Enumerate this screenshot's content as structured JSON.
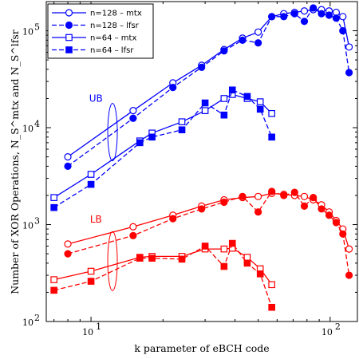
{
  "chart_data": {
    "type": "line",
    "xscale": "log",
    "yscale": "log",
    "xlim": [
      6.5,
      130
    ],
    "ylim": [
      100,
      200000
    ],
    "xlabel": "k parameter of eBCH code",
    "ylabel": "Number of XOR Operations, N_S^mtx and N_S^lfsr",
    "xticks": [
      10,
      100
    ],
    "yticks": [
      100,
      1000,
      10000,
      100000
    ],
    "grid": false,
    "legend_position": "top-left",
    "colors": {
      "blue": "#0000ff",
      "red": "#ff0000"
    },
    "annotations": [
      {
        "text": "UB",
        "color": "#0000ff"
      },
      {
        "text": "LB",
        "color": "#ff0000"
      }
    ],
    "series": [
      {
        "name": "n=128 – mtx",
        "group": "UB",
        "color": "#0000ff",
        "dash": false,
        "marker": "circle-open",
        "x": [
          8,
          15,
          22,
          29,
          36,
          43,
          50,
          57,
          64,
          71,
          78,
          85,
          92,
          99,
          106,
          113,
          120
        ],
        "y": [
          5000,
          15000,
          29000,
          44000,
          64000,
          84000,
          97000,
          140000,
          150000,
          155000,
          160000,
          165000,
          165000,
          160000,
          155000,
          140000,
          68000
        ]
      },
      {
        "name": "n=128 – lfsr",
        "group": "UB",
        "color": "#0000ff",
        "dash": true,
        "marker": "circle-filled",
        "x": [
          8,
          15,
          22,
          29,
          36,
          43,
          50,
          57,
          64,
          71,
          78,
          85,
          92,
          99,
          106,
          113,
          120
        ],
        "y": [
          4000,
          12500,
          26000,
          42000,
          62000,
          80000,
          75000,
          140000,
          140000,
          150000,
          125000,
          172000,
          150000,
          145000,
          135000,
          100000,
          37000
        ]
      },
      {
        "name": "n=64 – mtx",
        "group": "UB",
        "color": "#0000ff",
        "dash": false,
        "marker": "square-open",
        "x": [
          7,
          10,
          16,
          18,
          24,
          30,
          36,
          39,
          45,
          51,
          57
        ],
        "y": [
          1900,
          3300,
          7300,
          8800,
          11500,
          15000,
          20000,
          22000,
          20000,
          18500,
          14000
        ]
      },
      {
        "name": "n=64 – lfsr",
        "group": "UB",
        "color": "#0000ff",
        "dash": true,
        "marker": "square-filled",
        "x": [
          7,
          10,
          16,
          18,
          24,
          30,
          36,
          39,
          45,
          51,
          57
        ],
        "y": [
          1500,
          2600,
          7000,
          8000,
          9500,
          18000,
          13500,
          24500,
          21000,
          15500,
          8000
        ]
      },
      {
        "name": "n=128 – mtx",
        "group": "LB",
        "color": "#ff0000",
        "dash": false,
        "marker": "circle-open",
        "in_legend": false,
        "x": [
          8,
          15,
          22,
          29,
          36,
          43,
          50,
          57,
          64,
          71,
          78,
          85,
          92,
          99,
          106,
          113,
          120
        ],
        "y": [
          630,
          950,
          1250,
          1550,
          1800,
          1900,
          1950,
          2100,
          2050,
          2000,
          1950,
          1800,
          1600,
          1350,
          1100,
          900,
          560
        ]
      },
      {
        "name": "n=128 – lfsr",
        "group": "LB",
        "color": "#ff0000",
        "dash": true,
        "marker": "circle-filled",
        "in_legend": false,
        "x": [
          8,
          15,
          22,
          29,
          36,
          43,
          50,
          57,
          64,
          71,
          78,
          85,
          92,
          99,
          106,
          113,
          120
        ],
        "y": [
          500,
          770,
          1150,
          1450,
          1700,
          1950,
          1350,
          2200,
          2000,
          2150,
          1550,
          1900,
          1450,
          1250,
          1050,
          800,
          300
        ]
      },
      {
        "name": "n=64 – mtx",
        "group": "LB",
        "color": "#ff0000",
        "dash": false,
        "marker": "square-open",
        "in_legend": false,
        "x": [
          7,
          10,
          16,
          18,
          24,
          30,
          36,
          39,
          45,
          51,
          57
        ],
        "y": [
          270,
          330,
          460,
          470,
          470,
          560,
          560,
          570,
          460,
          350,
          240
        ]
      },
      {
        "name": "n=64 – lfsr",
        "group": "LB",
        "color": "#ff0000",
        "dash": true,
        "marker": "square-filled",
        "in_legend": false,
        "x": [
          7,
          10,
          16,
          18,
          24,
          30,
          36,
          39,
          45,
          51,
          57
        ],
        "y": [
          210,
          260,
          450,
          450,
          440,
          600,
          370,
          640,
          400,
          310,
          140
        ]
      }
    ]
  }
}
